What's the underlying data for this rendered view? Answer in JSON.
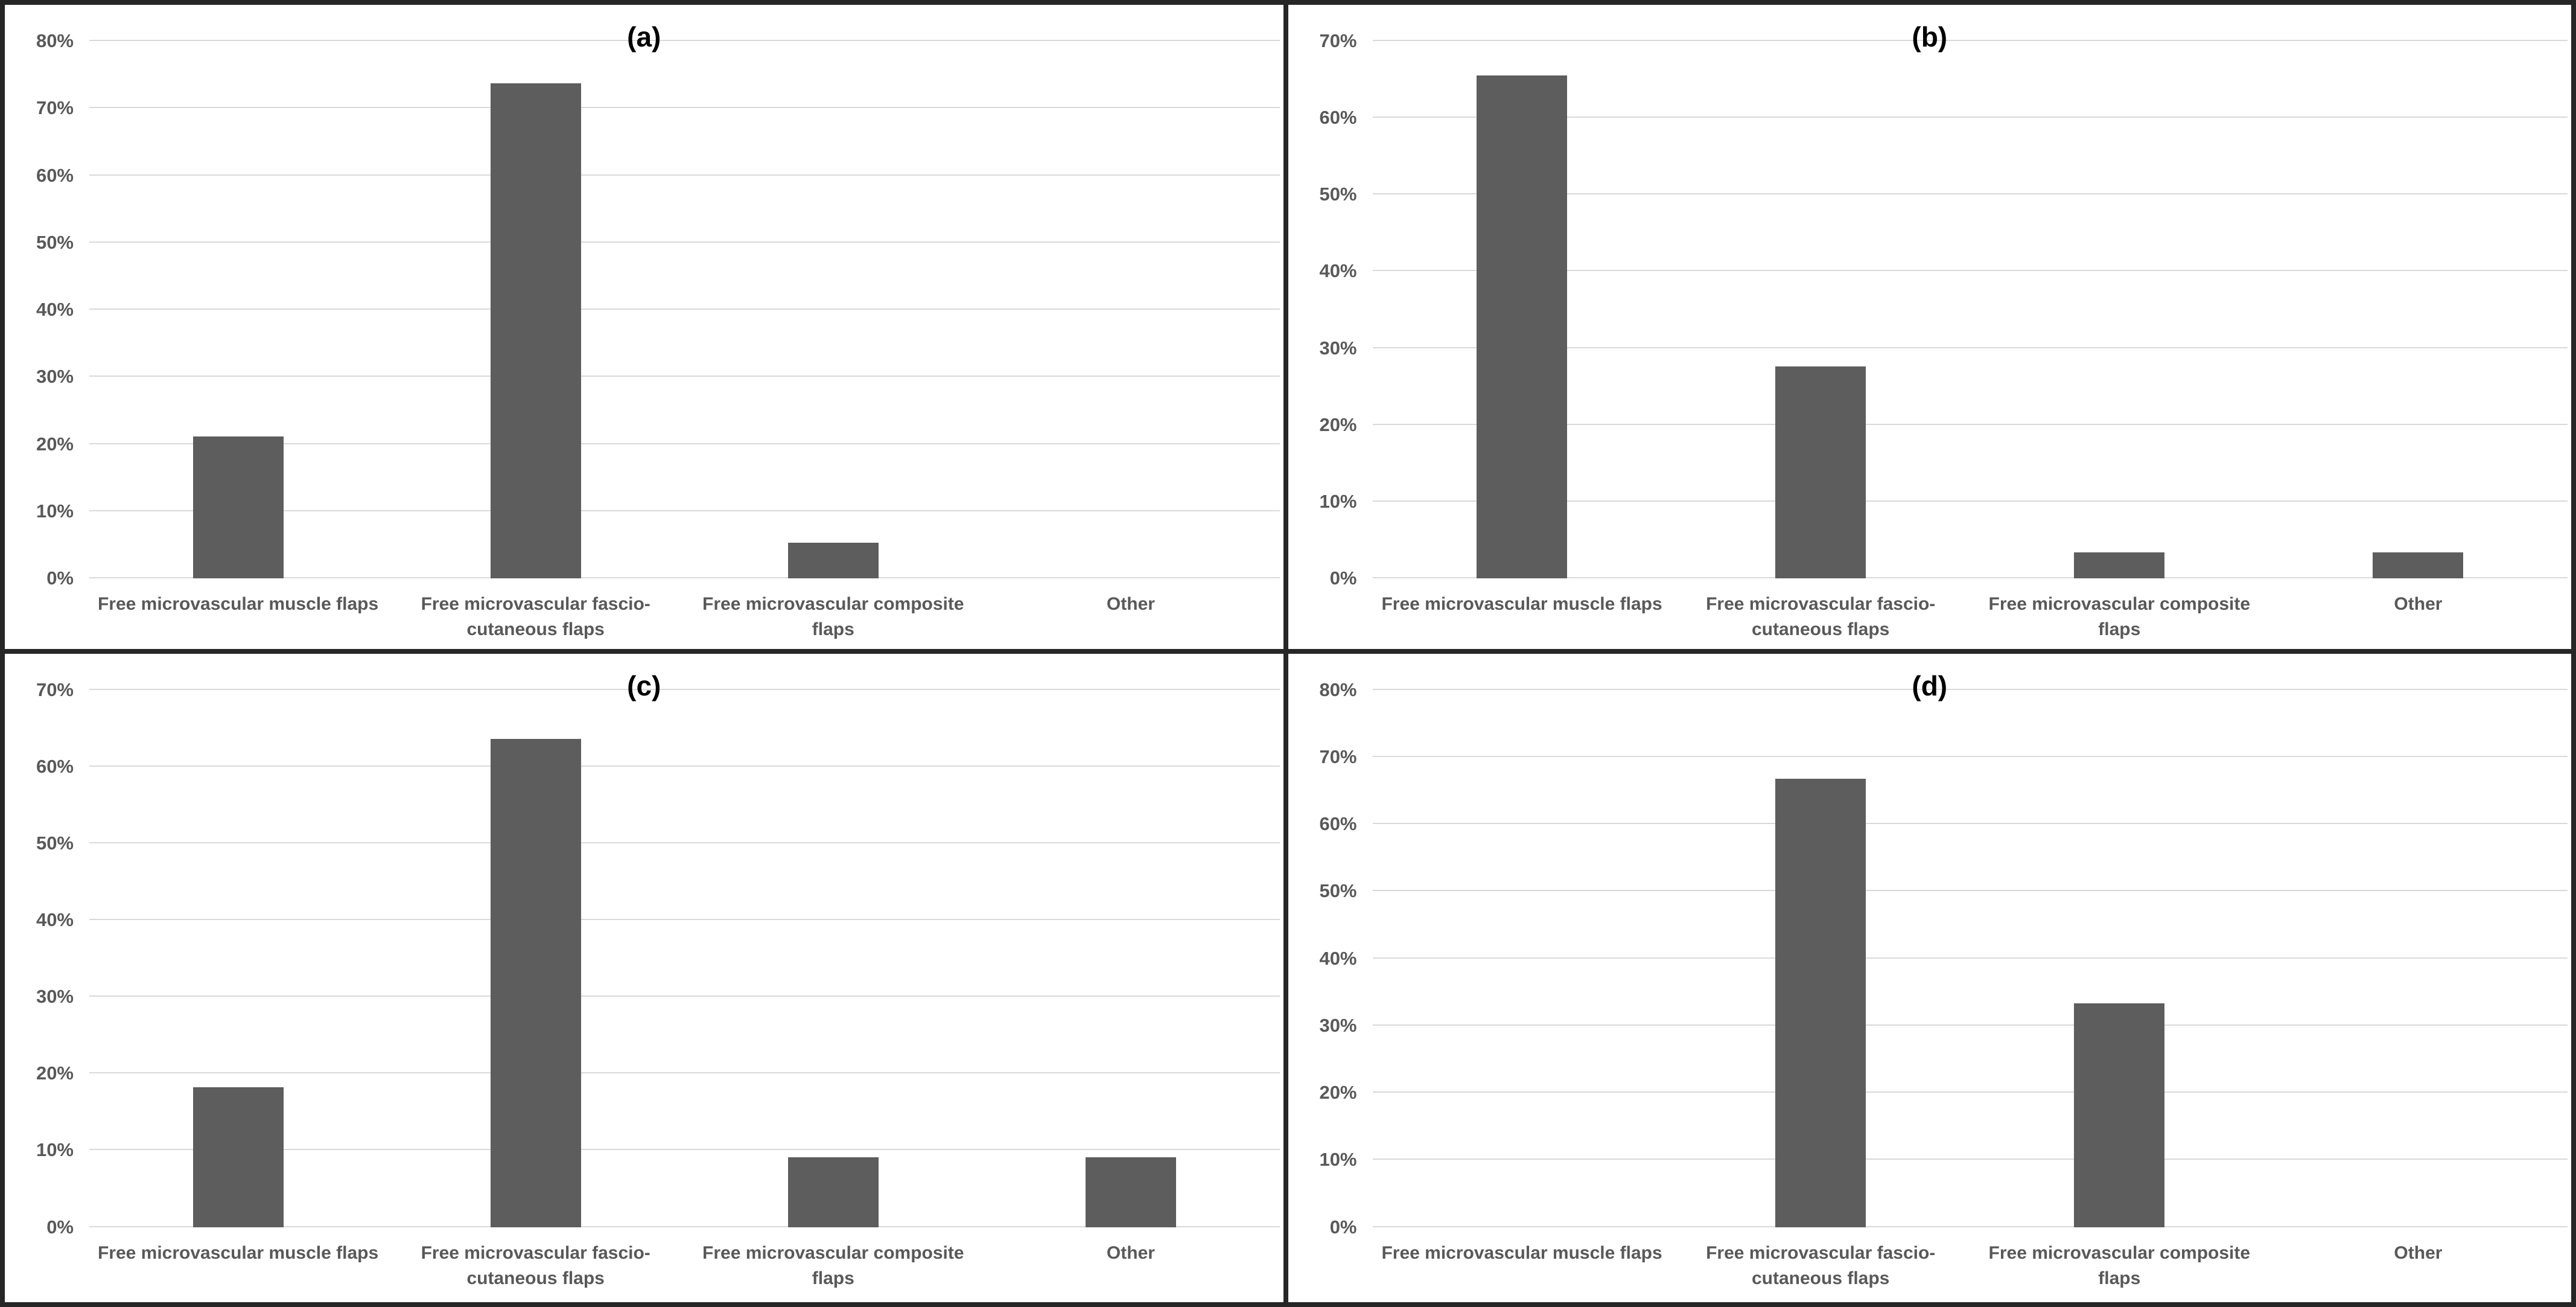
{
  "figure": {
    "background_color": "#ffffff",
    "border_color": "#262626",
    "bar_color": "#5d5d5d",
    "gridline_color": "#d9d9d9",
    "axis_label_color": "#595959",
    "title_color": "#000000"
  },
  "chart_data": [
    {
      "id": "a",
      "type": "bar",
      "title": "(a)",
      "categories": [
        "Free microvascular muscle flaps",
        "Free microvascular fascio-cutaneous flaps",
        "Free microvascular composite flaps",
        "Other"
      ],
      "values": [
        21.1,
        73.7,
        5.3,
        0
      ],
      "ylim": [
        0,
        80
      ],
      "ytick_step": 10,
      "ytick_labels": [
        "0%",
        "10%",
        "20%",
        "30%",
        "40%",
        "50%",
        "60%",
        "70%",
        "80%"
      ],
      "xlabel": "",
      "ylabel": "",
      "grid": true,
      "legend": false
    },
    {
      "id": "b",
      "type": "bar",
      "title": "(b)",
      "categories": [
        "Free microvascular muscle flaps",
        "Free microvascular fascio-cutaneous flaps",
        "Free microvascular composite flaps",
        "Other"
      ],
      "values": [
        65.5,
        27.6,
        3.4,
        3.4
      ],
      "ylim": [
        0,
        70
      ],
      "ytick_step": 10,
      "ytick_labels": [
        "0%",
        "10%",
        "20%",
        "30%",
        "40%",
        "50%",
        "60%",
        "70%"
      ],
      "xlabel": "",
      "ylabel": "",
      "grid": true,
      "legend": false
    },
    {
      "id": "c",
      "type": "bar",
      "title": "(c)",
      "categories": [
        "Free microvascular muscle flaps",
        "Free microvascular fascio-cutaneous flaps",
        "Free microvascular composite flaps",
        "Other"
      ],
      "values": [
        18.2,
        63.6,
        9.1,
        9.1
      ],
      "ylim": [
        0,
        70
      ],
      "ytick_step": 10,
      "ytick_labels": [
        "0%",
        "10%",
        "20%",
        "30%",
        "40%",
        "50%",
        "60%",
        "70%"
      ],
      "xlabel": "",
      "ylabel": "",
      "grid": true,
      "legend": false
    },
    {
      "id": "d",
      "type": "bar",
      "title": "(d)",
      "categories": [
        "Free microvascular muscle flaps",
        "Free microvascular fascio-cutaneous flaps",
        "Free microvascular composite flaps",
        "Other"
      ],
      "values": [
        0,
        66.7,
        33.3,
        0
      ],
      "ylim": [
        0,
        80
      ],
      "ytick_step": 10,
      "ytick_labels": [
        "0%",
        "10%",
        "20%",
        "30%",
        "40%",
        "50%",
        "60%",
        "70%",
        "80%"
      ],
      "xlabel": "",
      "ylabel": "",
      "grid": true,
      "legend": false
    }
  ]
}
